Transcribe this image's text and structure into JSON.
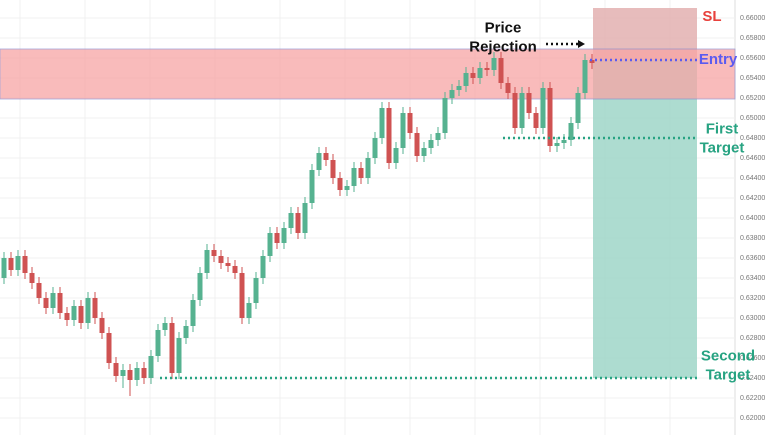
{
  "chart_data": {
    "type": "candlestick",
    "up_color": "#56b290",
    "down_color": "#cf5252",
    "grid": true,
    "ylim": [
      0.6183,
      0.6618
    ],
    "yticks": [
      {
        "value": 0.66,
        "label": "0.66000"
      },
      {
        "value": 0.658,
        "label": "0.65800"
      },
      {
        "value": 0.656,
        "label": "0.65600"
      },
      {
        "value": 0.654,
        "label": "0.65400"
      },
      {
        "value": 0.652,
        "label": "0.65200"
      },
      {
        "value": 0.65,
        "label": "0.65000"
      },
      {
        "value": 0.648,
        "label": "0.64800"
      },
      {
        "value": 0.646,
        "label": "0.64600"
      },
      {
        "value": 0.644,
        "label": "0.64400"
      },
      {
        "value": 0.642,
        "label": "0.64200"
      },
      {
        "value": 0.64,
        "label": "0.64000"
      },
      {
        "value": 0.638,
        "label": "0.63800"
      },
      {
        "value": 0.636,
        "label": "0.63600"
      },
      {
        "value": 0.634,
        "label": "0.63400"
      },
      {
        "value": 0.632,
        "label": "0.63200"
      },
      {
        "value": 0.63,
        "label": "0.63000"
      },
      {
        "value": 0.628,
        "label": "0.62800"
      },
      {
        "value": 0.626,
        "label": "0.62600"
      },
      {
        "value": 0.624,
        "label": "0.62400"
      },
      {
        "value": 0.622,
        "label": "0.62200"
      },
      {
        "value": 0.62,
        "label": "0.62000"
      }
    ],
    "ohlc": [
      [
        0.634,
        0.6366,
        0.6334,
        0.636
      ],
      [
        0.636,
        0.6366,
        0.6342,
        0.6348
      ],
      [
        0.6348,
        0.6368,
        0.6342,
        0.6362
      ],
      [
        0.6362,
        0.6368,
        0.6339,
        0.6345
      ],
      [
        0.6345,
        0.6351,
        0.6329,
        0.6335
      ],
      [
        0.6335,
        0.6341,
        0.6314,
        0.632
      ],
      [
        0.632,
        0.6326,
        0.6304,
        0.631
      ],
      [
        0.631,
        0.6331,
        0.6304,
        0.6325
      ],
      [
        0.6325,
        0.6331,
        0.6299,
        0.6305
      ],
      [
        0.6305,
        0.6311,
        0.6292,
        0.6298
      ],
      [
        0.6298,
        0.6318,
        0.6292,
        0.6312
      ],
      [
        0.6312,
        0.6318,
        0.6289,
        0.6295
      ],
      [
        0.6295,
        0.6326,
        0.6289,
        0.632
      ],
      [
        0.632,
        0.6326,
        0.6294,
        0.63
      ],
      [
        0.63,
        0.6306,
        0.6279,
        0.6285
      ],
      [
        0.6285,
        0.6291,
        0.6249,
        0.6255
      ],
      [
        0.6255,
        0.6261,
        0.6236,
        0.6242
      ],
      [
        0.6242,
        0.6254,
        0.623,
        0.6248
      ],
      [
        0.6248,
        0.6254,
        0.6222,
        0.6238
      ],
      [
        0.6238,
        0.6256,
        0.6232,
        0.625
      ],
      [
        0.625,
        0.6256,
        0.6234,
        0.624
      ],
      [
        0.624,
        0.6268,
        0.6234,
        0.6262
      ],
      [
        0.6262,
        0.6294,
        0.6256,
        0.6288
      ],
      [
        0.6288,
        0.6301,
        0.6282,
        0.6295
      ],
      [
        0.6295,
        0.6301,
        0.6239,
        0.6245
      ],
      [
        0.6245,
        0.6286,
        0.6239,
        0.628
      ],
      [
        0.628,
        0.6298,
        0.6274,
        0.6292
      ],
      [
        0.6292,
        0.6324,
        0.6286,
        0.6318
      ],
      [
        0.6318,
        0.6351,
        0.6312,
        0.6345
      ],
      [
        0.6345,
        0.6374,
        0.6339,
        0.6368
      ],
      [
        0.6368,
        0.6374,
        0.6356,
        0.6362
      ],
      [
        0.6362,
        0.6368,
        0.6349,
        0.6355
      ],
      [
        0.6355,
        0.6361,
        0.6346,
        0.6352
      ],
      [
        0.6352,
        0.6358,
        0.6339,
        0.6345
      ],
      [
        0.6345,
        0.6351,
        0.6294,
        0.63
      ],
      [
        0.63,
        0.6321,
        0.6294,
        0.6315
      ],
      [
        0.6315,
        0.6346,
        0.6309,
        0.634
      ],
      [
        0.634,
        0.6368,
        0.6334,
        0.6362
      ],
      [
        0.6362,
        0.6391,
        0.6356,
        0.6385
      ],
      [
        0.6385,
        0.6391,
        0.6369,
        0.6375
      ],
      [
        0.6375,
        0.6396,
        0.6369,
        0.639
      ],
      [
        0.639,
        0.6411,
        0.6384,
        0.6405
      ],
      [
        0.6405,
        0.6411,
        0.6379,
        0.6385
      ],
      [
        0.6385,
        0.6421,
        0.6379,
        0.6415
      ],
      [
        0.6415,
        0.6454,
        0.6409,
        0.6448
      ],
      [
        0.6448,
        0.6471,
        0.6442,
        0.6465
      ],
      [
        0.6465,
        0.6471,
        0.6452,
        0.6458
      ],
      [
        0.6458,
        0.6464,
        0.6434,
        0.644
      ],
      [
        0.644,
        0.6446,
        0.6422,
        0.6428
      ],
      [
        0.6428,
        0.6438,
        0.6422,
        0.6432
      ],
      [
        0.6432,
        0.6456,
        0.6426,
        0.645
      ],
      [
        0.645,
        0.6456,
        0.6434,
        0.644
      ],
      [
        0.644,
        0.6466,
        0.6434,
        0.646
      ],
      [
        0.646,
        0.6486,
        0.6454,
        0.648
      ],
      [
        0.648,
        0.6516,
        0.6474,
        0.651
      ],
      [
        0.651,
        0.6516,
        0.6449,
        0.6455
      ],
      [
        0.6455,
        0.6476,
        0.6449,
        0.647
      ],
      [
        0.647,
        0.6511,
        0.6464,
        0.6505
      ],
      [
        0.6505,
        0.6511,
        0.6479,
        0.6485
      ],
      [
        0.6485,
        0.6491,
        0.6456,
        0.6462
      ],
      [
        0.6462,
        0.6476,
        0.6456,
        0.647
      ],
      [
        0.647,
        0.6484,
        0.6464,
        0.6478
      ],
      [
        0.6478,
        0.6491,
        0.6472,
        0.6485
      ],
      [
        0.6485,
        0.6526,
        0.6479,
        0.652
      ],
      [
        0.652,
        0.6534,
        0.6514,
        0.6528
      ],
      [
        0.6528,
        0.6538,
        0.6522,
        0.6532
      ],
      [
        0.6532,
        0.6551,
        0.6526,
        0.6545
      ],
      [
        0.6545,
        0.6551,
        0.6534,
        0.654
      ],
      [
        0.654,
        0.6556,
        0.6534,
        0.655
      ],
      [
        0.655,
        0.6556,
        0.6542,
        0.6548
      ],
      [
        0.6548,
        0.6566,
        0.6542,
        0.656
      ],
      [
        0.656,
        0.6566,
        0.6529,
        0.6535
      ],
      [
        0.6535,
        0.6541,
        0.6519,
        0.6525
      ],
      [
        0.6525,
        0.6531,
        0.6484,
        0.649
      ],
      [
        0.649,
        0.6531,
        0.6484,
        0.6525
      ],
      [
        0.6525,
        0.6531,
        0.6499,
        0.6505
      ],
      [
        0.6505,
        0.6511,
        0.6484,
        0.649
      ],
      [
        0.649,
        0.6536,
        0.6484,
        0.653
      ],
      [
        0.653,
        0.6536,
        0.6466,
        0.6472
      ],
      [
        0.6472,
        0.6481,
        0.6466,
        0.6475
      ],
      [
        0.6475,
        0.6484,
        0.6469,
        0.6478
      ],
      [
        0.6478,
        0.6501,
        0.6472,
        0.6495
      ],
      [
        0.6495,
        0.6531,
        0.6489,
        0.6525
      ],
      [
        0.6525,
        0.6564,
        0.6519,
        0.6558
      ],
      [
        0.6558,
        0.6564,
        0.6549,
        0.6555
      ]
    ],
    "zone": {
      "low": 0.6519,
      "high": 0.6569,
      "color": "#f7a5a5"
    },
    "position": {
      "sl": 0.661,
      "entry": 0.6558,
      "first_target": 0.648,
      "second_target": 0.624,
      "loss_color": "#e3b0b0",
      "profit_color": "#9fd6c8"
    },
    "annotations": {
      "sl": {
        "lines": [
          "SL"
        ],
        "color": "#e8413c"
      },
      "entry": {
        "lines": [
          "Entry"
        ],
        "color": "#5b5bf0"
      },
      "first_target": {
        "lines": [
          "First",
          "Target"
        ],
        "color": "#27a382"
      },
      "second_target": {
        "lines": [
          "Second",
          "Target"
        ],
        "color": "#27a382"
      },
      "rejection": {
        "lines": [
          "Price",
          "Rejection"
        ],
        "color": "#111111"
      }
    }
  }
}
